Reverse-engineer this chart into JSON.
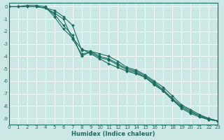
{
  "xlabel": "Humidex (Indice chaleur)",
  "bg_color": "#cce8e4",
  "grid_color": "#ffffff",
  "line_color": "#1a6b5e",
  "xlim": [
    0,
    23
  ],
  "ylim": [
    -9.5,
    0.3
  ],
  "xticks": [
    0,
    1,
    2,
    3,
    4,
    5,
    6,
    7,
    8,
    9,
    10,
    11,
    12,
    13,
    14,
    15,
    16,
    17,
    18,
    19,
    20,
    21,
    22,
    23
  ],
  "yticks": [
    0,
    -1,
    -2,
    -3,
    -4,
    -5,
    -6,
    -7,
    -8,
    -9
  ],
  "lines": [
    {
      "x": [
        0,
        1,
        2,
        3,
        4,
        5,
        6,
        7,
        8,
        9,
        10,
        11,
        12,
        13,
        14,
        15,
        16,
        17,
        18,
        19,
        20,
        21,
        22,
        23
      ],
      "y": [
        0.0,
        0.0,
        0.0,
        0.0,
        -0.1,
        -0.5,
        -1.0,
        -2.6,
        -3.8,
        -3.7,
        -4.1,
        -4.3,
        -4.7,
        -5.1,
        -5.3,
        -5.7,
        -6.2,
        -6.8,
        -7.5,
        -8.2,
        -8.6,
        -8.9,
        -9.1,
        -9.2
      ]
    },
    {
      "x": [
        0,
        1,
        2,
        3,
        4,
        5,
        6,
        7,
        8,
        9,
        10,
        11,
        12,
        13,
        14,
        15,
        16,
        17,
        18,
        19,
        20,
        21,
        22,
        23
      ],
      "y": [
        0.0,
        0.0,
        0.0,
        0.0,
        -0.1,
        -0.3,
        -0.8,
        -1.5,
        -3.5,
        -3.6,
        -3.8,
        -4.0,
        -4.4,
        -4.9,
        -5.1,
        -5.5,
        -6.0,
        -6.5,
        -7.2,
        -7.9,
        -8.3,
        -8.7,
        -9.0,
        -9.2
      ]
    },
    {
      "x": [
        0,
        1,
        2,
        3,
        4,
        5,
        6,
        7,
        8,
        9,
        10,
        11,
        12,
        13,
        14,
        15,
        16,
        17,
        18,
        19,
        20,
        21,
        22,
        23
      ],
      "y": [
        0.0,
        0.0,
        0.1,
        0.1,
        0.0,
        -0.8,
        -1.8,
        -2.5,
        -3.4,
        -3.8,
        -4.2,
        -4.6,
        -4.9,
        -5.2,
        -5.4,
        -5.7,
        -6.3,
        -6.8,
        -7.5,
        -8.1,
        -8.5,
        -8.8,
        -9.1,
        -9.2
      ]
    },
    {
      "x": [
        0,
        1,
        2,
        3,
        4,
        5,
        6,
        7,
        8,
        9,
        10,
        11,
        12,
        13,
        14,
        15,
        16,
        17,
        18,
        19,
        20,
        21,
        22,
        23
      ],
      "y": [
        0.0,
        0.0,
        0.0,
        0.0,
        -0.1,
        -0.6,
        -1.5,
        -2.3,
        -4.0,
        -3.6,
        -4.0,
        -4.2,
        -4.6,
        -5.0,
        -5.2,
        -5.6,
        -6.1,
        -6.7,
        -7.4,
        -8.0,
        -8.4,
        -8.8,
        -9.0,
        -9.2
      ]
    }
  ]
}
